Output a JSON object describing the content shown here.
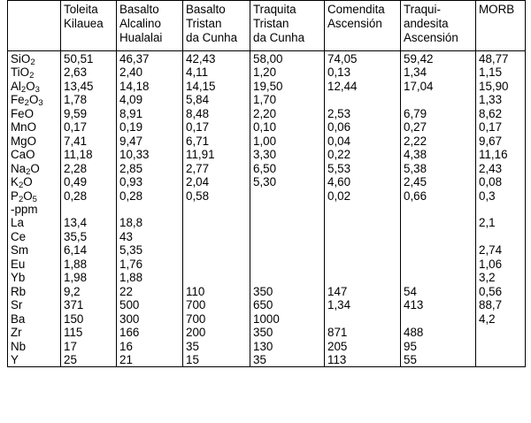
{
  "columns": [
    {
      "lines": [
        ""
      ]
    },
    {
      "lines": [
        "Toleita",
        "Kilauea"
      ]
    },
    {
      "lines": [
        "Basalto",
        "Alcalino",
        "Hualalai"
      ]
    },
    {
      "lines": [
        "Basalto",
        "Tristan",
        "da Cunha"
      ]
    },
    {
      "lines": [
        "Traquita",
        "Tristan",
        "da Cunha"
      ]
    },
    {
      "lines": [
        "Comendita",
        "Ascensión"
      ]
    },
    {
      "lines": [
        "Traqui-",
        "andesita",
        "Ascensión"
      ]
    },
    {
      "lines": [
        "MORB"
      ]
    }
  ],
  "rows": [
    {
      "label": "SiO",
      "sub": "2",
      "values": [
        "50,51",
        "46,37",
        "42,43",
        "58,00",
        "74,05",
        "59,42",
        "48,77"
      ]
    },
    {
      "label": "TiO",
      "sub": "2",
      "values": [
        "2,63",
        "2,40",
        "4,11",
        "1,20",
        "0,13",
        "1,34",
        "1,15"
      ]
    },
    {
      "label": "Al",
      "sub": "2",
      "label2": "O",
      "sub2": "3",
      "values": [
        "13,45",
        "14,18",
        "14,15",
        "19,50",
        "12,44",
        "17,04",
        "15,90"
      ]
    },
    {
      "label": "Fe",
      "sub": "2",
      "label2": "O",
      "sub2": "3",
      "values": [
        "1,78",
        "4,09",
        "5,84",
        "1,70",
        "",
        "",
        "1,33"
      ]
    },
    {
      "label": "FeO",
      "values": [
        "9,59",
        "8,91",
        "8,48",
        "2,20",
        "2,53",
        "6,79",
        "8,62"
      ]
    },
    {
      "label": "MnO",
      "values": [
        "0,17",
        "0,19",
        "0,17",
        "0,10",
        "0,06",
        "0,27",
        "0,17"
      ]
    },
    {
      "label": "MgO",
      "values": [
        "7,41",
        "9,47",
        "6,71",
        "1,00",
        "0,04",
        "2,22",
        "9,67"
      ]
    },
    {
      "label": "CaO",
      "values": [
        "11,18",
        "10,33",
        "11,91",
        "3,30",
        "0,22",
        "4,38",
        "11,16"
      ]
    },
    {
      "label": "Na",
      "sub": "2",
      "label2": "O",
      "values": [
        "2,28",
        "2,85",
        "2,77",
        "6,50",
        "5,53",
        "5,38",
        "2,43"
      ]
    },
    {
      "label": "K",
      "sub": "2",
      "label2": "O",
      "values": [
        "0,49",
        "0,93",
        "2,04",
        "5,30",
        "4,60",
        "2,45",
        "0,08"
      ]
    },
    {
      "label": "P",
      "sub": "2",
      "label2": "O",
      "sub2": "5",
      "values": [
        "0,28",
        "0,28",
        "0,58",
        "",
        "0,02",
        "0,66",
        "0,3"
      ]
    },
    {
      "label": "-ppm",
      "values": [
        "",
        "",
        "",
        "",
        "",
        "",
        ""
      ]
    },
    {
      "label": "La",
      "values": [
        "13,4",
        "18,8",
        "",
        "",
        "",
        "",
        "2,1"
      ]
    },
    {
      "label": "Ce",
      "values": [
        "35,5",
        "43",
        "",
        "",
        "",
        "",
        ""
      ]
    },
    {
      "label": "Sm",
      "values": [
        "6,14",
        "5,35",
        "",
        "",
        "",
        "",
        "2,74"
      ]
    },
    {
      "label": "Eu",
      "values": [
        "1,88",
        "1,76",
        "",
        "",
        "",
        "",
        "1,06"
      ]
    },
    {
      "label": "Yb",
      "values": [
        "1,98",
        "1,88",
        "",
        "",
        "",
        "",
        "3,2"
      ]
    },
    {
      "label": "Rb",
      "values": [
        "9,2",
        "22",
        "110",
        "350",
        "147",
        "54",
        "0,56"
      ]
    },
    {
      "label": "Sr",
      "values": [
        "371",
        "500",
        "700",
        "650",
        "1,34",
        "413",
        "88,7"
      ]
    },
    {
      "label": "Ba",
      "values": [
        "150",
        "300",
        "700",
        "1000",
        "",
        "",
        "4,2"
      ]
    },
    {
      "label": "Zr",
      "values": [
        "115",
        "166",
        "200",
        "350",
        "871",
        "488",
        ""
      ]
    },
    {
      "label": "Nb",
      "values": [
        "17",
        "16",
        "35",
        "130",
        "205",
        "95",
        ""
      ]
    },
    {
      "label": "Y",
      "values": [
        "25",
        "21",
        "15",
        "35",
        "113",
        "55",
        ""
      ]
    }
  ]
}
